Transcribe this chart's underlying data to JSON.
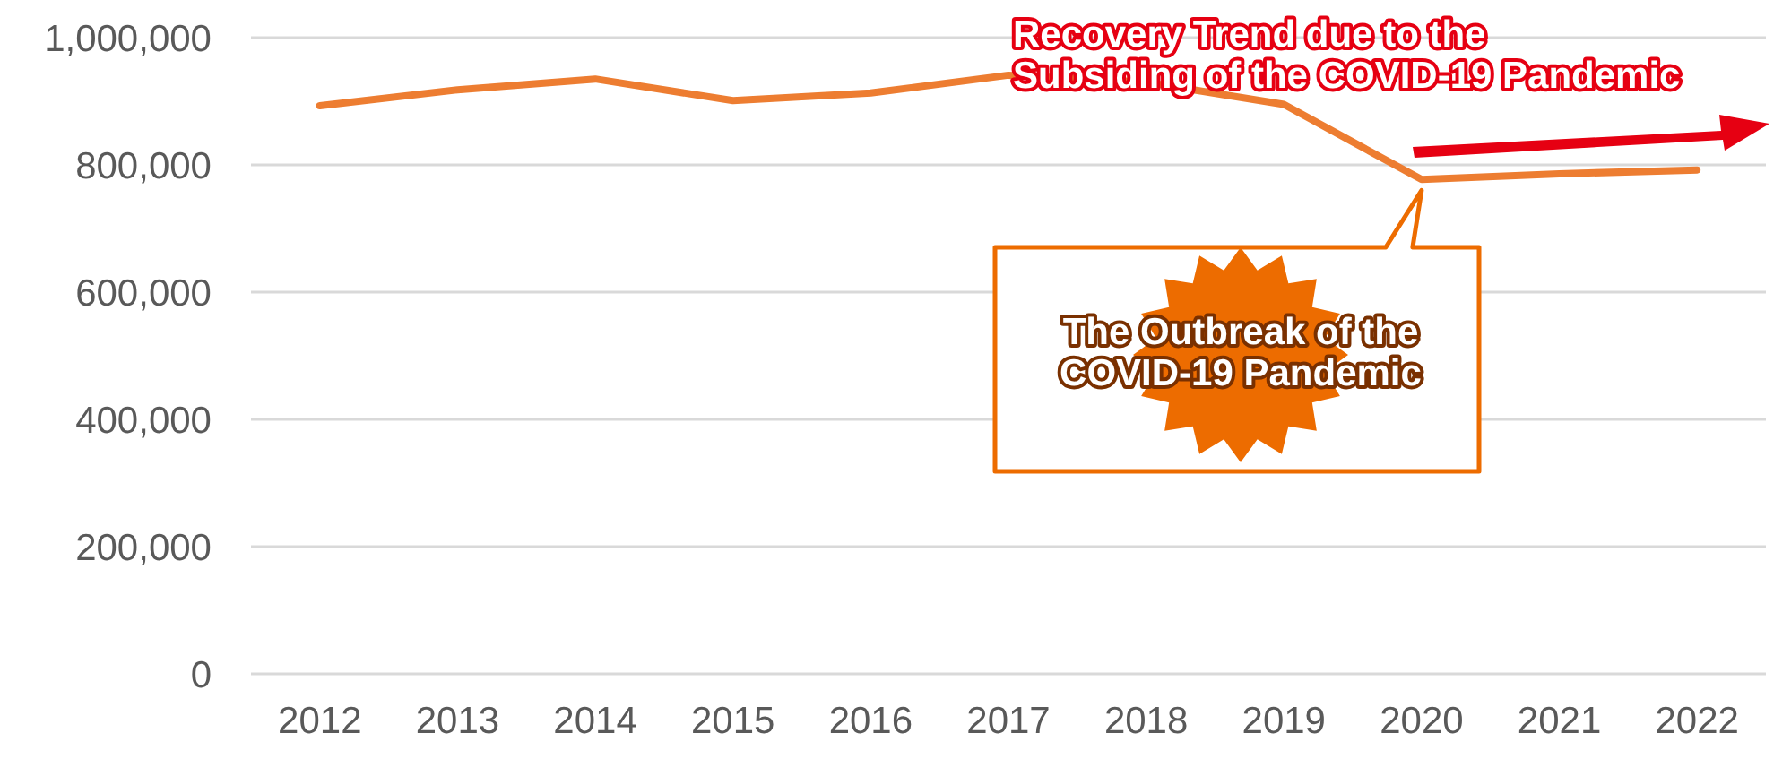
{
  "chart_data": {
    "type": "line",
    "categories": [
      "2012",
      "2013",
      "2014",
      "2015",
      "2016",
      "2017",
      "2018",
      "2019",
      "2020",
      "2021",
      "2022"
    ],
    "series": [
      {
        "color": "#ed7d31",
        "values": [
          893000,
          918000,
          935000,
          901000,
          913000,
          941000,
          930000,
          895000,
          777000,
          786000,
          792000
        ]
      }
    ],
    "ylim": [
      0,
      1000000
    ],
    "yticks": [
      {
        "value": 0,
        "label": "0"
      },
      {
        "value": 200000,
        "label": "200,000"
      },
      {
        "value": 400000,
        "label": "400,000"
      },
      {
        "value": 600000,
        "label": "600,000"
      },
      {
        "value": 800000,
        "label": "800,000"
      },
      {
        "value": 1000000,
        "label": "1,000,000"
      }
    ],
    "grid": "y",
    "marker": "none",
    "line_style": "solid",
    "annotations": [
      "The Outbreak of the\nCOVID-19 Pandemic",
      "Recovery Trend due to the\nSubsiding of the COVID-19 Pandemic"
    ]
  }
}
